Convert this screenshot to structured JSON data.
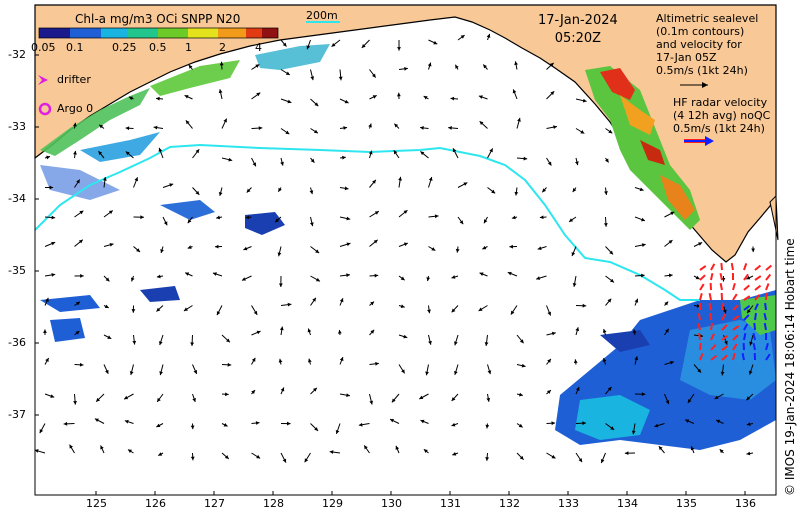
{
  "colorbar": {
    "title": "Chl-a mg/m3 OCi SNPP N20",
    "ticks": [
      "0.05",
      "0.1",
      "0.25",
      "0.5",
      "1",
      "2",
      "4"
    ],
    "colors": [
      "#1a1a8c",
      "#1f5fd6",
      "#19b4e0",
      "#22c58c",
      "#6ccb28",
      "#e3e21c",
      "#f29a1a",
      "#e03b12",
      "#8f1111"
    ]
  },
  "scale_bar": {
    "label": "200m"
  },
  "date": {
    "day": "17-Jan-2024",
    "time": "05:20Z"
  },
  "legend": {
    "drifter": "drifter",
    "argo": "Argo 0",
    "drifter_color": "#e020e0",
    "argo_color": "#e020e0"
  },
  "altimetry_note": {
    "lines": [
      "Altimetric sealevel",
      "(0.1m contours)",
      "and velocity for",
      "17-Jan 05Z",
      "0.5m/s (1kt 24h)"
    ]
  },
  "hf_radar_note": {
    "lines": [
      "HF radar velocity",
      "(4 12h avg) noQC",
      "0.5m/s (1kt 24h)"
    ],
    "arrow_color": "#1020ff",
    "arrow_outline": "#ff2020"
  },
  "axes": {
    "lat_labels": [
      "-32",
      "-33",
      "-34",
      "-35",
      "-36",
      "-37"
    ],
    "lon_labels": [
      "125",
      "126",
      "127",
      "128",
      "129",
      "130",
      "131",
      "132",
      "133",
      "134",
      "135",
      "136"
    ]
  },
  "footer": "© IMOS 19-Jan-2024 18:06:14 Hobart time",
  "colors": {
    "land": "#f8c896",
    "isobath": "#2ee6ee",
    "ocean": "#ffffff"
  }
}
